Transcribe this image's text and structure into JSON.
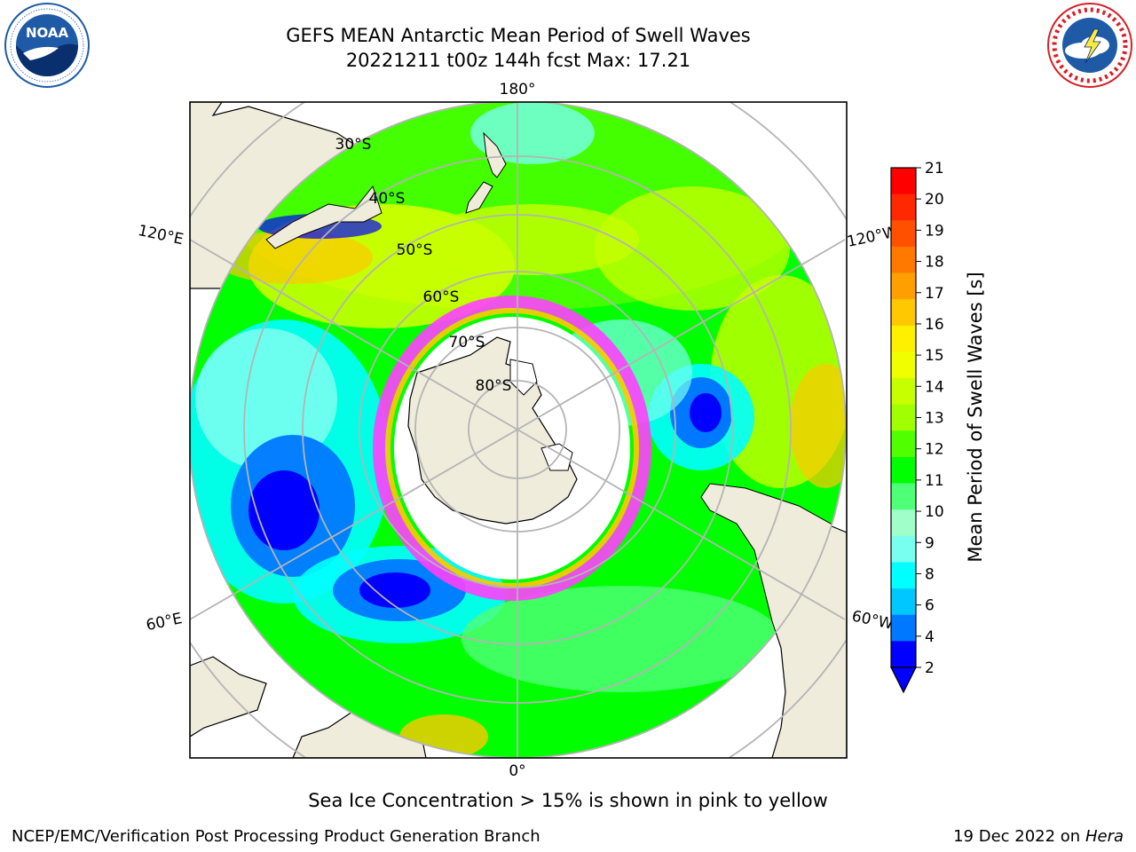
{
  "header": {
    "title_line1": "GEFS MEAN Antarctic Mean Period of Swell Waves",
    "title_line2": "20221211 t00z 144h fcst   Max: 17.21"
  },
  "logos": {
    "left": {
      "name": "NOAA",
      "ring_text": "NATIONAL OCEANIC AND ATMOSPHERIC ADMINISTRATION · U.S. DEPARTMENT OF COMMERCE",
      "colors": [
        "#1f5aa6",
        "#0a2f6e",
        "#ffffff"
      ]
    },
    "right": {
      "name": "NATIONAL WEATHER SERVICE",
      "colors": [
        "#d62027",
        "#1f5aa6",
        "#ffffff"
      ]
    }
  },
  "map": {
    "projection": "south polar stereographic",
    "longitude_labels": {
      "top": "180°",
      "bottom": "0°",
      "upper_left": "120°E",
      "lower_left": "60°E",
      "upper_right": "120°W",
      "lower_right": "60°W"
    },
    "latitude_labels": [
      "30°S",
      "40°S",
      "50°S",
      "60°S",
      "70°S",
      "80°S"
    ],
    "colors": {
      "land": "#efecdc",
      "ice": "#ffffff",
      "grid": "#b4b4b4"
    }
  },
  "colorbar": {
    "label": "Mean Period of Swell Waves [s]",
    "ticks": [
      "21",
      "20",
      "19",
      "18",
      "17",
      "16",
      "15",
      "14",
      "13",
      "12",
      "11",
      "10",
      "9",
      "8",
      "6",
      "4",
      "2"
    ],
    "colors": [
      "#ff0000",
      "#ff2800",
      "#ff5000",
      "#ff7800",
      "#ffa000",
      "#ffc800",
      "#fff000",
      "#f0ff00",
      "#c8ff00",
      "#a0ff00",
      "#50ff00",
      "#00ff00",
      "#50ff78",
      "#a0ffc8",
      "#78fff0",
      "#00ffff",
      "#00c8ff",
      "#0078ff",
      "#0000ff"
    ],
    "underflow_color": "#0000ff"
  },
  "footer": {
    "note": "Sea Ice Concentration > 15% is shown in pink to yellow",
    "credit": "NCEP/EMC/Verification Post Processing Product Generation Branch",
    "date": "19 Dec 2022 on",
    "machine": "Hera"
  }
}
